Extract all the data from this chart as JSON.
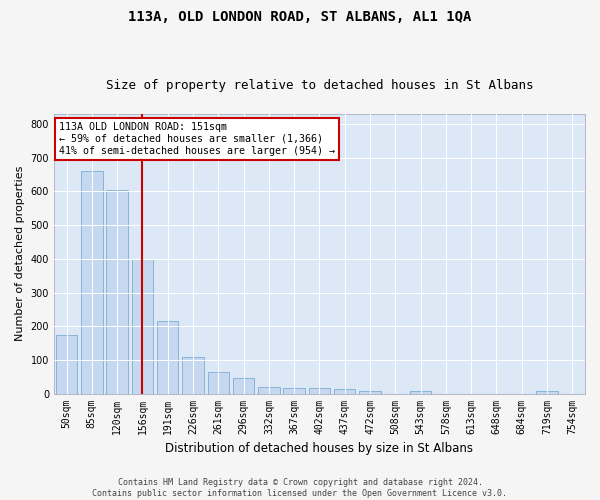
{
  "title": "113A, OLD LONDON ROAD, ST ALBANS, AL1 1QA",
  "subtitle": "Size of property relative to detached houses in St Albans",
  "xlabel": "Distribution of detached houses by size in St Albans",
  "ylabel": "Number of detached properties",
  "categories": [
    "50sqm",
    "85sqm",
    "120sqm",
    "156sqm",
    "191sqm",
    "226sqm",
    "261sqm",
    "296sqm",
    "332sqm",
    "367sqm",
    "402sqm",
    "437sqm",
    "472sqm",
    "508sqm",
    "543sqm",
    "578sqm",
    "613sqm",
    "648sqm",
    "684sqm",
    "719sqm",
    "754sqm"
  ],
  "values": [
    175,
    660,
    605,
    400,
    215,
    110,
    63,
    45,
    20,
    17,
    17,
    14,
    8,
    0,
    8,
    0,
    0,
    0,
    0,
    7,
    0
  ],
  "bar_color": "#c5d8f0",
  "bar_edge_color": "#7aadd4",
  "vline_color": "#cc0000",
  "vline_index": 3,
  "annotation_text": "113A OLD LONDON ROAD: 151sqm\n← 59% of detached houses are smaller (1,366)\n41% of semi-detached houses are larger (954) →",
  "annotation_box_facecolor": "#ffffff",
  "annotation_box_edgecolor": "#cc0000",
  "ylim": [
    0,
    830
  ],
  "yticks": [
    0,
    100,
    200,
    300,
    400,
    500,
    600,
    700,
    800
  ],
  "plot_bg_color": "#dce8f5",
  "fig_bg_color": "#f5f5f5",
  "grid_color": "#ffffff",
  "title_fontsize": 10,
  "subtitle_fontsize": 9,
  "axis_label_fontsize": 8,
  "tick_fontsize": 7,
  "footer_text": "Contains HM Land Registry data © Crown copyright and database right 2024.\nContains public sector information licensed under the Open Government Licence v3.0."
}
